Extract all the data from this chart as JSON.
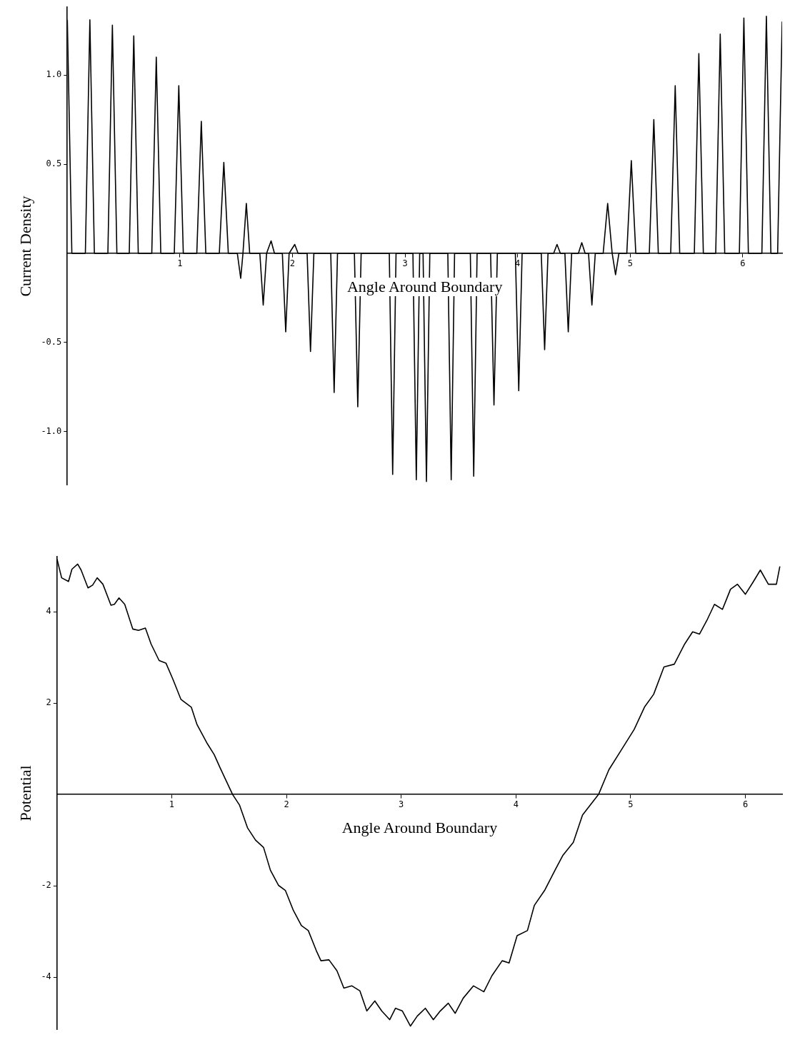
{
  "chart_data": [
    {
      "type": "line",
      "xlabel": "Angle Around Boundary",
      "ylabel": "Current Density",
      "xlim": [
        0,
        6.35
      ],
      "ylim": [
        -1.3,
        1.38
      ],
      "xticks": [
        1,
        2,
        3,
        4,
        5,
        6
      ],
      "yticks": [
        {
          "value": -1,
          "label": "-1.0"
        },
        -0.5,
        0.5,
        {
          "value": 1,
          "label": "1.0"
        }
      ],
      "grid": false,
      "legend": false,
      "marker": "none",
      "series": [
        {
          "color": "#000000",
          "x": [
            0,
            0.04,
            0.16,
            0.2,
            0.24,
            0.36,
            0.4,
            0.44,
            0.55,
            0.59,
            0.63,
            0.75,
            0.79,
            0.83,
            0.95,
            0.99,
            1.03,
            1.15,
            1.19,
            1.23,
            1.35,
            1.39,
            1.43,
            1.51,
            1.54,
            1.56,
            1.59,
            1.62,
            1.71,
            1.74,
            1.77,
            1.81,
            1.84,
            1.91,
            1.94,
            1.97,
            2.02,
            2.05,
            2.13,
            2.16,
            2.19,
            2.34,
            2.37,
            2.4,
            2.55,
            2.58,
            2.61,
            2.86,
            2.89,
            2.92,
            3.07,
            3.1,
            3.13,
            3.16,
            3.19,
            3.22,
            3.38,
            3.41,
            3.44,
            3.58,
            3.61,
            3.64,
            3.76,
            3.79,
            3.82,
            3.98,
            4.01,
            4.04,
            4.21,
            4.24,
            4.27,
            4.32,
            4.35,
            4.38,
            4.42,
            4.45,
            4.48,
            4.54,
            4.57,
            4.6,
            4.63,
            4.66,
            4.69,
            4.76,
            4.8,
            4.84,
            4.87,
            4.9,
            4.97,
            5.01,
            5.05,
            5.17,
            5.21,
            5.25,
            5.36,
            5.4,
            5.44,
            5.57,
            5.61,
            5.65,
            5.76,
            5.8,
            5.84,
            5.97,
            6.01,
            6.05,
            6.17,
            6.21,
            6.25,
            6.31,
            6.35
          ],
          "values": [
            1.31,
            0,
            0,
            1.31,
            0,
            0,
            1.28,
            0,
            0,
            1.22,
            0,
            0,
            1.1,
            0,
            0,
            0.94,
            0,
            0,
            0.74,
            0,
            0,
            0.51,
            0,
            0,
            -0.14,
            0,
            0.28,
            0,
            0,
            -0.29,
            0,
            0.07,
            0,
            0,
            -0.44,
            0,
            0.05,
            0,
            0,
            -0.55,
            0,
            0,
            -0.78,
            0,
            0,
            -0.86,
            0,
            0,
            -1.24,
            0,
            0,
            -1.27,
            0,
            0,
            -1.28,
            0,
            0,
            -1.27,
            0,
            0,
            -1.25,
            0,
            0,
            -0.85,
            0,
            0,
            -0.77,
            0,
            0,
            -0.54,
            0,
            0,
            0.05,
            0,
            0,
            -0.44,
            0,
            0,
            0.06,
            0,
            0,
            -0.29,
            0,
            0,
            0.28,
            0,
            -0.12,
            0,
            0,
            0.52,
            0,
            0,
            0.75,
            0,
            0,
            0.94,
            0,
            0,
            1.12,
            0,
            0,
            1.23,
            0,
            0,
            1.32,
            0,
            0,
            1.33,
            0,
            0,
            1.3
          ]
        }
      ]
    },
    {
      "type": "line",
      "xlabel": "Angle Around Boundary",
      "ylabel": "Potential",
      "xlim": [
        0,
        6.32
      ],
      "ylim": [
        -5.15,
        5.2
      ],
      "xticks": [
        1,
        2,
        3,
        4,
        5,
        6
      ],
      "yticks": [
        -4,
        -2,
        2,
        4
      ],
      "grid": false,
      "legend": false,
      "marker": "none",
      "series": [
        {
          "color": "#000000",
          "x": [
            0,
            0.04,
            0.1,
            0.13,
            0.18,
            0.21,
            0.27,
            0.31,
            0.35,
            0.4,
            0.47,
            0.5,
            0.54,
            0.59,
            0.66,
            0.71,
            0.77,
            0.82,
            0.89,
            0.95,
            1.01,
            1.08,
            1.17,
            1.22,
            1.31,
            1.37,
            1.42,
            1.53,
            1.59,
            1.66,
            1.73,
            1.8,
            1.86,
            1.93,
            1.99,
            2.06,
            2.13,
            2.19,
            2.26,
            2.3,
            2.37,
            2.44,
            2.5,
            2.57,
            2.64,
            2.7,
            2.77,
            2.83,
            2.9,
            2.95,
            3.01,
            3.08,
            3.14,
            3.21,
            3.28,
            3.34,
            3.41,
            3.47,
            3.54,
            3.63,
            3.72,
            3.79,
            3.88,
            3.94,
            4.01,
            4.1,
            4.16,
            4.25,
            4.34,
            4.41,
            4.5,
            4.58,
            4.72,
            4.81,
            4.92,
            5.03,
            5.12,
            5.2,
            5.29,
            5.38,
            5.47,
            5.54,
            5.6,
            5.67,
            5.73,
            5.8,
            5.87,
            5.93,
            6,
            6.07,
            6.13,
            6.2,
            6.27,
            6.3
          ],
          "values": [
            5.15,
            4.74,
            4.66,
            4.93,
            5.04,
            4.91,
            4.52,
            4.58,
            4.74,
            4.6,
            4.14,
            4.16,
            4.3,
            4.16,
            3.62,
            3.59,
            3.64,
            3.29,
            2.93,
            2.87,
            2.52,
            2.08,
            1.91,
            1.53,
            1.11,
            0.87,
            0.59,
            0,
            -0.23,
            -0.73,
            -1,
            -1.16,
            -1.66,
            -1.99,
            -2.1,
            -2.54,
            -2.87,
            -2.98,
            -3.42,
            -3.64,
            -3.62,
            -3.86,
            -4.24,
            -4.19,
            -4.3,
            -4.74,
            -4.52,
            -4.74,
            -4.93,
            -4.68,
            -4.74,
            -5.07,
            -4.85,
            -4.68,
            -4.93,
            -4.74,
            -4.57,
            -4.79,
            -4.46,
            -4.19,
            -4.32,
            -3.97,
            -3.64,
            -3.69,
            -3.09,
            -2.98,
            -2.43,
            -2.1,
            -1.66,
            -1.33,
            -1.05,
            -0.45,
            0,
            0.54,
            0.98,
            1.42,
            1.91,
            2.19,
            2.79,
            2.85,
            3.29,
            3.56,
            3.51,
            3.84,
            4.16,
            4.05,
            4.49,
            4.6,
            4.38,
            4.66,
            4.91,
            4.6,
            4.6,
            4.99
          ]
        }
      ]
    }
  ]
}
